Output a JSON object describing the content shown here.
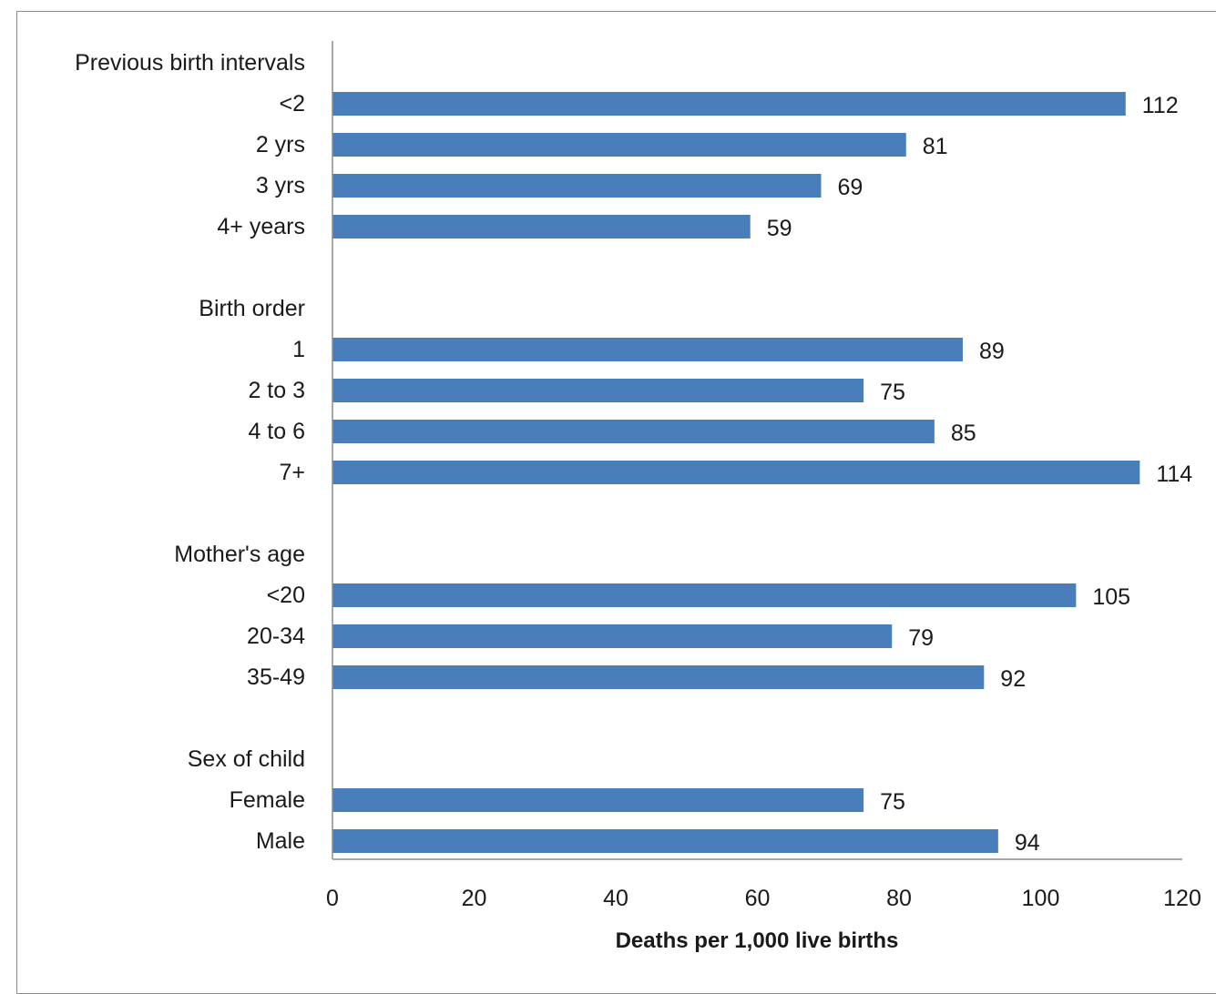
{
  "chart_data": {
    "type": "bar",
    "orientation": "horizontal",
    "xlabel": "Deaths per 1,000 live births",
    "xlim": [
      0,
      120
    ],
    "xticks": [
      "0",
      "20",
      "40",
      "60",
      "80",
      "100",
      "120"
    ],
    "grid": false,
    "bar_color": "#4a7ebb",
    "groups": [
      {
        "label": "Previous birth intervals",
        "categories": [
          "<2",
          "2 yrs",
          "3 yrs",
          "4+ years"
        ],
        "values": [
          112,
          81,
          69,
          59
        ]
      },
      {
        "label": "Birth order",
        "categories": [
          "1",
          "2 to 3",
          "4 to 6",
          "7+"
        ],
        "values": [
          89,
          75,
          85,
          114
        ]
      },
      {
        "label": "Mother's age",
        "categories": [
          "<20",
          "20-34",
          "35-49"
        ],
        "values": [
          105,
          79,
          92
        ]
      },
      {
        "label": "Sex of child",
        "categories": [
          "Female",
          "Male"
        ],
        "values": [
          75,
          94
        ]
      }
    ]
  }
}
